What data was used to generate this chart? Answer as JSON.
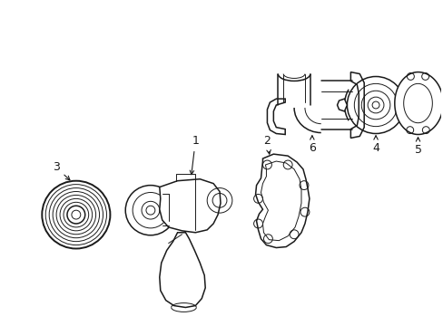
{
  "background_color": "#ffffff",
  "line_color": "#1a1a1a",
  "fig_width": 4.89,
  "fig_height": 3.6,
  "dpi": 100,
  "label_fontsize": 9,
  "lw_main": 1.1,
  "lw_thin": 0.7,
  "lw_thick": 1.4
}
